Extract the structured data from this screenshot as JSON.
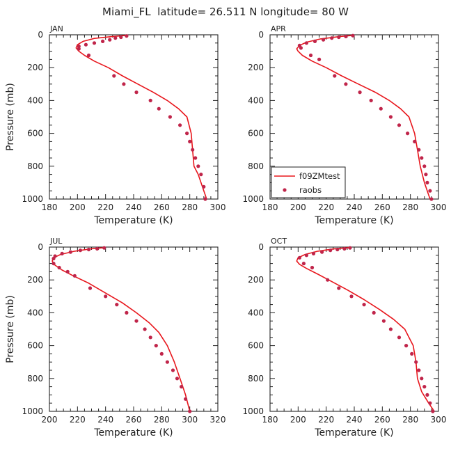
{
  "figure": {
    "title": "Miami_FL  latitude= 26.511 N longitude= 80 W"
  },
  "legend": {
    "items": [
      {
        "label": "f09ZMtest",
        "kind": "line",
        "color": "#e8161c"
      },
      {
        "label": "raobs",
        "kind": "marker",
        "color": "#c0254a"
      }
    ],
    "placement": "lower-left of APR panel"
  },
  "chart_data": [
    {
      "type": "line",
      "panel_label": "JAN",
      "xlabel": "Temperature (K)",
      "ylabel": "Pressure (mb)",
      "xlim": [
        180,
        300
      ],
      "ylim": [
        1000,
        0
      ],
      "y_inverted": true,
      "xticks": [
        180,
        200,
        220,
        240,
        260,
        280,
        300
      ],
      "yticks": [
        0,
        200,
        400,
        600,
        800,
        1000
      ],
      "grid": false,
      "series": [
        {
          "name": "f09ZMtest",
          "kind": "line",
          "color": "#e8161c",
          "x": [
            236,
            225,
            212,
            204,
            200,
            199,
            201,
            205,
            212,
            222,
            232,
            243,
            254,
            264,
            272,
            278,
            281,
            282,
            283,
            286,
            289,
            292
          ],
          "y": [
            3,
            10,
            22,
            40,
            60,
            80,
            100,
            125,
            160,
            200,
            250,
            300,
            350,
            400,
            450,
            500,
            600,
            700,
            800,
            850,
            925,
            1000
          ]
        },
        {
          "name": "raobs",
          "kind": "scatter",
          "color": "#c0254a",
          "x": [
            235,
            231,
            227,
            223,
            218,
            212,
            206,
            201,
            201,
            208,
            226,
            233,
            242,
            252,
            258,
            266,
            273,
            278,
            280,
            282,
            284,
            286,
            288,
            290,
            291
          ],
          "y": [
            7,
            15,
            20,
            30,
            40,
            50,
            60,
            70,
            85,
            125,
            250,
            300,
            350,
            400,
            450,
            500,
            550,
            600,
            650,
            700,
            750,
            800,
            850,
            925,
            1000
          ]
        }
      ]
    },
    {
      "type": "line",
      "panel_label": "APR",
      "xlabel": "Temperature (K)",
      "ylabel": "",
      "xlim": [
        180,
        300
      ],
      "ylim": [
        1000,
        0
      ],
      "y_inverted": true,
      "xticks": [
        180,
        200,
        220,
        240,
        260,
        280,
        300
      ],
      "yticks": [
        0,
        200,
        400,
        600,
        800,
        1000
      ],
      "grid": false,
      "series": [
        {
          "name": "f09ZMtest",
          "kind": "line",
          "color": "#e8161c",
          "x": [
            240,
            230,
            216,
            206,
            201,
            199,
            200,
            203,
            210,
            220,
            231,
            243,
            255,
            265,
            273,
            279,
            283,
            285,
            287,
            290,
            294
          ],
          "y": [
            3,
            10,
            25,
            45,
            65,
            85,
            100,
            125,
            160,
            200,
            250,
            300,
            350,
            400,
            450,
            500,
            600,
            700,
            800,
            900,
            1000
          ]
        },
        {
          "name": "raobs",
          "kind": "scatter",
          "color": "#c0254a",
          "x": [
            239,
            234,
            229,
            224,
            218,
            212,
            206,
            201,
            202,
            209,
            215,
            226,
            234,
            244,
            252,
            259,
            266,
            272,
            278,
            283,
            286,
            288,
            290,
            291,
            292,
            294,
            295
          ],
          "y": [
            5,
            10,
            15,
            20,
            30,
            40,
            50,
            65,
            80,
            125,
            150,
            250,
            300,
            350,
            400,
            450,
            500,
            550,
            600,
            650,
            700,
            750,
            800,
            850,
            900,
            950,
            1000
          ]
        }
      ]
    },
    {
      "type": "line",
      "panel_label": "JUL",
      "xlabel": "Temperature (K)",
      "ylabel": "Pressure (mb)",
      "xlim": [
        200,
        320
      ],
      "ylim": [
        1000,
        0
      ],
      "y_inverted": true,
      "xticks": [
        200,
        220,
        240,
        260,
        280,
        300,
        320
      ],
      "yticks": [
        0,
        200,
        400,
        600,
        800,
        1000
      ],
      "grid": false,
      "series": [
        {
          "name": "f09ZMtest",
          "kind": "line",
          "color": "#e8161c",
          "x": [
            240,
            230,
            218,
            208,
            203,
            202,
            204,
            209,
            217,
            228,
            240,
            252,
            262,
            271,
            278,
            284,
            289,
            293,
            297,
            300
          ],
          "y": [
            3,
            10,
            25,
            45,
            65,
            85,
            110,
            140,
            175,
            220,
            280,
            340,
            400,
            460,
            520,
            600,
            700,
            800,
            900,
            1000
          ]
        },
        {
          "name": "raobs",
          "kind": "scatter",
          "color": "#c0254a",
          "x": [
            239,
            234,
            228,
            222,
            215,
            209,
            204,
            203,
            203,
            207,
            213,
            218,
            229,
            240,
            248,
            255,
            262,
            268,
            272,
            276,
            280,
            284,
            288,
            291,
            294,
            297,
            300
          ],
          "y": [
            5,
            10,
            15,
            20,
            30,
            40,
            55,
            70,
            100,
            125,
            150,
            175,
            250,
            300,
            350,
            400,
            450,
            500,
            550,
            600,
            650,
            700,
            750,
            800,
            850,
            925,
            1000
          ]
        }
      ]
    },
    {
      "type": "line",
      "panel_label": "OCT",
      "xlabel": "Temperature (K)",
      "ylabel": "",
      "xlim": [
        180,
        300
      ],
      "ylim": [
        1000,
        0
      ],
      "y_inverted": true,
      "xticks": [
        180,
        200,
        220,
        240,
        260,
        280,
        300
      ],
      "yticks": [
        0,
        200,
        400,
        600,
        800,
        1000
      ],
      "grid": false,
      "series": [
        {
          "name": "f09ZMtest",
          "kind": "line",
          "color": "#e8161c",
          "x": [
            237,
            226,
            214,
            205,
            200,
            199,
            201,
            206,
            214,
            224,
            235,
            247,
            258,
            268,
            276,
            282,
            284,
            285,
            288,
            293,
            297
          ],
          "y": [
            3,
            10,
            25,
            45,
            65,
            85,
            105,
            130,
            165,
            210,
            260,
            320,
            380,
            440,
            500,
            600,
            700,
            800,
            880,
            950,
            1000
          ]
        },
        {
          "name": "raobs",
          "kind": "scatter",
          "color": "#c0254a",
          "x": [
            237,
            233,
            228,
            223,
            217,
            211,
            206,
            201,
            204,
            210,
            221,
            229,
            238,
            247,
            254,
            261,
            266,
            272,
            277,
            281,
            284,
            286,
            288,
            290,
            292,
            294,
            296
          ],
          "y": [
            5,
            10,
            15,
            20,
            30,
            40,
            50,
            65,
            100,
            125,
            200,
            250,
            300,
            350,
            400,
            450,
            500,
            550,
            600,
            650,
            700,
            750,
            800,
            850,
            900,
            950,
            1000
          ]
        }
      ]
    }
  ]
}
